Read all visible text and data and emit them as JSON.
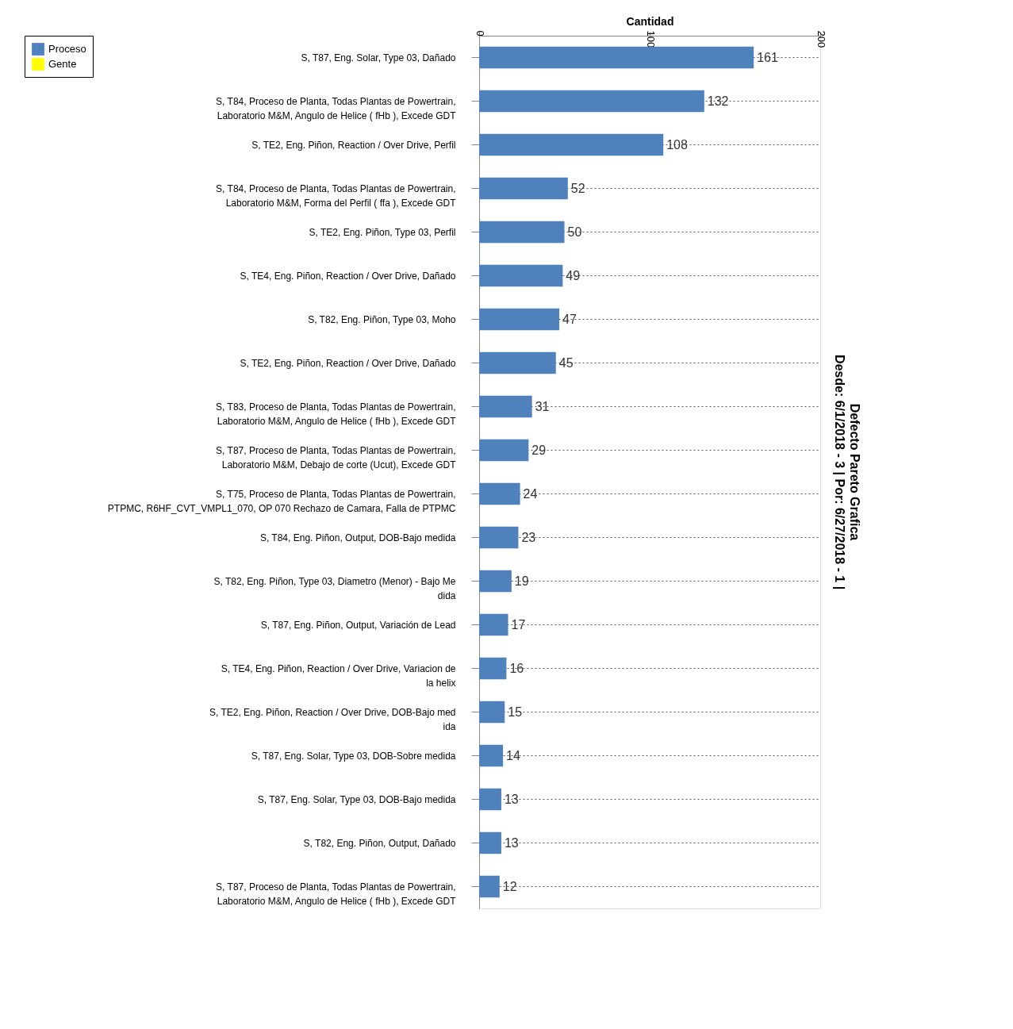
{
  "chart_data": {
    "type": "bar",
    "orientation": "horizontal",
    "title": "Defecto Pareto Grafica",
    "subtitle": "Desde: 6/1/2018 - 3 | Por: 6/27/2018 - 1 |",
    "xlabel": "Cantidad",
    "categories": [
      "S, T87, Eng. Solar, Type 03, Dañado",
      "S, T84, Proceso de Planta, Todas Plantas de Powertrain,\nLaboratorio M&M, Angulo de Helice ( fHb ), Excede GDT",
      "S, TE2, Eng. Piñon, Reaction / Over Drive, Perfil",
      "S, T84, Proceso de Planta, Todas Plantas de Powertrain,\nLaboratorio M&M, Forma del Perfil ( ffa ), Excede GDT",
      "S, TE2, Eng. Piñon, Type 03, Perfil",
      "S, TE4, Eng. Piñon, Reaction / Over Drive, Dañado",
      "S, T82, Eng. Piñon, Type 03, Moho",
      "S, TE2, Eng. Piñon, Reaction / Over Drive, Dañado",
      "S, T83, Proceso de Planta, Todas Plantas de Powertrain,\nLaboratorio M&M, Angulo de Helice ( fHb ), Excede GDT",
      "S, T87, Proceso de Planta, Todas Plantas de Powertrain,\nLaboratorio M&M, Debajo de corte (Ucut), Excede GDT",
      "S, T75, Proceso de Planta, Todas Plantas de Powertrain,\nPTPMC, R6HF_CVT_VMPL1_070, OP 070 Rechazo de Camara, Falla de PTPMC",
      "S, T84, Eng. Piñon, Output, DOB-Bajo medida",
      "S, T82, Eng. Piñon, Type 03, Diametro (Menor) - Bajo Me\ndida",
      "S, T87, Eng. Piñon, Output, Variación de Lead",
      "S, TE4, Eng. Piñon, Reaction / Over Drive, Variacion de\nla helix",
      "S, TE2, Eng. Piñon, Reaction / Over Drive, DOB-Bajo med\nida",
      "S, T87, Eng. Solar, Type 03, DOB-Sobre medida",
      "S, T87, Eng. Solar, Type 03, DOB-Bajo medida",
      "S, T82, Eng. Piñon, Output, Dañado",
      "S, T87, Proceso de Planta, Todas Plantas de Powertrain,\nLaboratorio M&M, Angulo de Helice ( fHb ), Excede GDT"
    ],
    "series": [
      {
        "name": "Proceso",
        "color": "#4f81bd",
        "values": [
          161,
          132,
          108,
          52,
          50,
          49,
          47,
          45,
          31,
          29,
          24,
          23,
          19,
          17,
          16,
          15,
          14,
          13,
          13,
          12
        ]
      },
      {
        "name": "Gente",
        "color": "#ffff00",
        "values": [
          null,
          null,
          null,
          null,
          null,
          null,
          null,
          null,
          null,
          null,
          null,
          null,
          null,
          null,
          null,
          null,
          null,
          null,
          null,
          null
        ]
      }
    ],
    "xlim": [
      0,
      200
    ],
    "xticks": [
      0,
      100,
      200
    ],
    "data_labels": true,
    "grid": "y",
    "legend": "left"
  }
}
